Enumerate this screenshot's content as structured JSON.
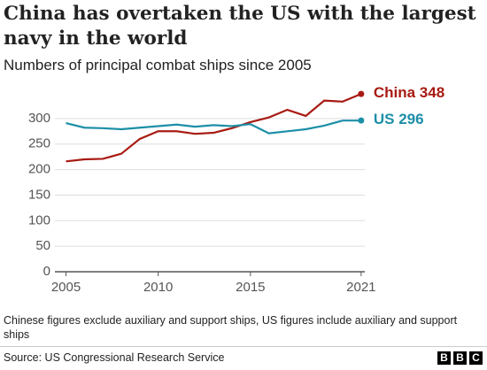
{
  "title": "China has overtaken the US with the largest navy in the world",
  "subtitle": "Numbers of principal combat ships since 2005",
  "chart_data": {
    "type": "line",
    "x": [
      2005,
      2006,
      2007,
      2008,
      2009,
      2010,
      2011,
      2012,
      2013,
      2014,
      2015,
      2016,
      2017,
      2018,
      2019,
      2020,
      2021
    ],
    "series": [
      {
        "name": "China",
        "color": "#a81b13",
        "values": [
          216,
          220,
          221,
          231,
          260,
          275,
          275,
          270,
          272,
          281,
          293,
          302,
          317,
          305,
          335,
          333,
          348
        ]
      },
      {
        "name": "US",
        "color": "#1d8fa8",
        "values": [
          291,
          282,
          281,
          279,
          282,
          285,
          288,
          284,
          287,
          285,
          289,
          271,
          275,
          279,
          286,
          296,
          296
        ]
      }
    ],
    "xlim": [
      2004.4,
      2021.2
    ],
    "xticks": [
      2005,
      2010,
      2015,
      2021
    ],
    "ylim": [
      0,
      350
    ],
    "yticks": [
      0,
      50,
      100,
      150,
      200,
      250,
      300
    ],
    "grid": true
  },
  "note": "Chinese figures exclude auxiliary and support ships, US figures include auxiliary and support ships",
  "source": "Source: US Congressional Research Service",
  "logo": [
    "B",
    "B",
    "C"
  ]
}
